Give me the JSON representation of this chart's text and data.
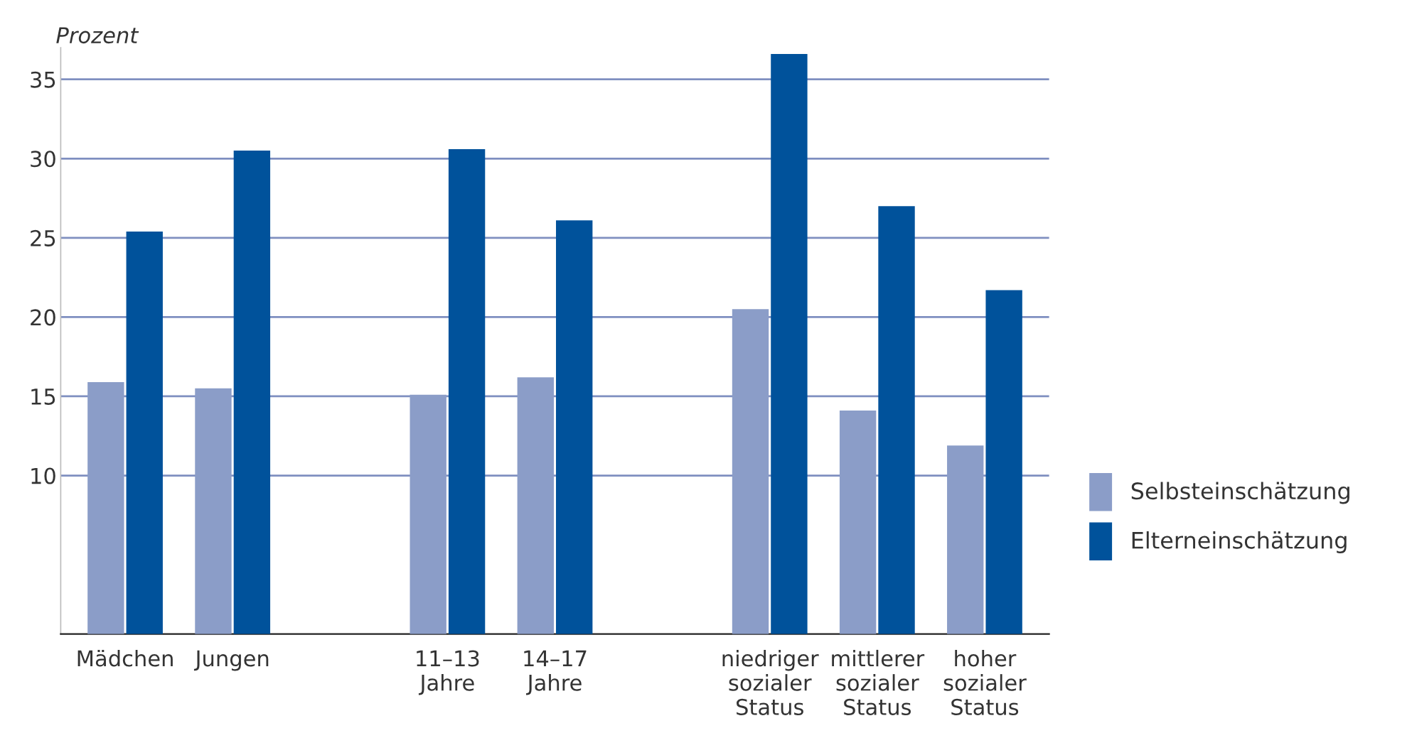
{
  "chart_data": {
    "type": "bar",
    "ylabel": "Prozent",
    "categories": [
      "Mädchen",
      "Jungen",
      null,
      "11–13\nJahre",
      "14–17\nJahre",
      null,
      "niedriger\nsozialer\nStatus",
      "mittlerer\nsozialer\nStatus",
      "hoher\nsozialer\nStatus"
    ],
    "series": [
      {
        "name": "Selbsteinschätzung",
        "color": "#8b9dc8",
        "values": [
          15.9,
          15.5,
          null,
          15.1,
          16.2,
          null,
          20.5,
          14.1,
          11.9
        ]
      },
      {
        "name": "Elterneinschätzung",
        "color": "#00529b",
        "values": [
          25.4,
          30.5,
          null,
          30.6,
          26.1,
          null,
          36.6,
          27.0,
          21.7
        ]
      }
    ],
    "ylim": [
      0,
      37
    ],
    "yticks": [
      10,
      15,
      20,
      25,
      30,
      35
    ],
    "grid": "y",
    "legend": "right"
  }
}
